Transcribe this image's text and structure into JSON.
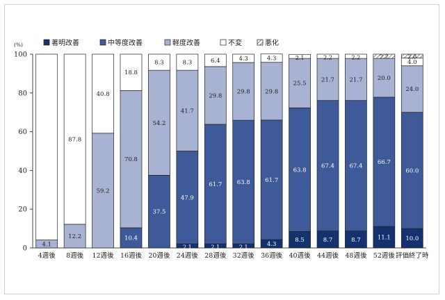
{
  "chart_data": {
    "type": "bar",
    "stacked": true,
    "unit_label": "(%)",
    "ylim": [
      0,
      100
    ],
    "yticks": [
      0,
      20,
      40,
      60,
      80,
      100
    ],
    "grid": false,
    "legend_position": "top-left",
    "categories": [
      "4週後",
      "8週後",
      "12週後",
      "16週後",
      "20週後",
      "24週後",
      "28週後",
      "32週後",
      "36週後",
      "40週後",
      "44週後",
      "48週後",
      "52週後",
      "評価終了時"
    ],
    "series": [
      {
        "name": "著明改善",
        "color": "#14336e",
        "pattern": "solid",
        "values": [
          0,
          0,
          0,
          0,
          0,
          2.1,
          2.1,
          2.1,
          4.3,
          8.5,
          8.7,
          8.7,
          11.1,
          10.0
        ]
      },
      {
        "name": "中等度改善",
        "color": "#3f5a98",
        "pattern": "solid",
        "values": [
          0,
          0,
          0,
          10.4,
          37.5,
          47.9,
          61.7,
          63.8,
          61.7,
          63.8,
          67.4,
          67.4,
          66.7,
          60.0
        ]
      },
      {
        "name": "軽度改善",
        "color": "#a8b2d2",
        "pattern": "solid",
        "values": [
          4.1,
          12.2,
          59.2,
          70.8,
          54.2,
          41.7,
          29.8,
          29.8,
          29.8,
          25.5,
          21.7,
          21.7,
          20.0,
          24.0
        ]
      },
      {
        "name": "不変",
        "color": "#ffffff",
        "pattern": "solid",
        "values": [
          95.9,
          87.8,
          40.8,
          18.8,
          8.3,
          8.3,
          6.4,
          4.3,
          4.3,
          2.1,
          2.2,
          2.2,
          0,
          4.0
        ]
      },
      {
        "name": "悪化",
        "color": "#ffffff",
        "pattern": "hatch",
        "values": [
          0,
          0,
          0,
          0,
          0,
          0,
          0,
          0,
          0,
          0,
          0,
          0,
          2.2,
          2.0
        ]
      }
    ],
    "data_labels": [
      [
        null,
        null,
        "4.1",
        null,
        null
      ],
      [
        null,
        null,
        "12.2",
        "87.8",
        null
      ],
      [
        null,
        null,
        "59.2",
        "40.8",
        null
      ],
      [
        null,
        "10.4",
        "70.8",
        "18.8",
        null
      ],
      [
        null,
        "37.5",
        "54.2",
        "8.3",
        null
      ],
      [
        "2.1",
        "47.9",
        "41.7",
        "8.3",
        null
      ],
      [
        "2.1",
        "61.7",
        "29.8",
        "6.4",
        null
      ],
      [
        "2.1",
        "63.8",
        "29.8",
        "4.3",
        null
      ],
      [
        "4.3",
        "61.7",
        "29.8",
        "4.3",
        null
      ],
      [
        "8.5",
        "63.8",
        "25.5",
        "2.1",
        null
      ],
      [
        "8.7",
        "67.4",
        "21.7",
        "2.2",
        null
      ],
      [
        "8.7",
        "67.4",
        "21.7",
        "2.2",
        null
      ],
      [
        "11.1",
        "66.7",
        "20.0",
        null,
        "2.2"
      ],
      [
        "10.0",
        "60.0",
        "24.0",
        "4.0",
        "2.0"
      ]
    ]
  }
}
